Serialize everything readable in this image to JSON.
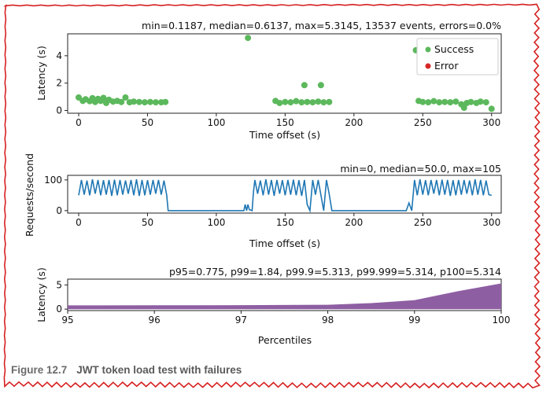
{
  "caption": {
    "number": "Figure 12.7",
    "title": "JWT token load test with failures"
  },
  "colors": {
    "success": "#5cb85c",
    "error": "#d62728",
    "line": "#1f77b4",
    "fill": "#8e5ea2",
    "border": "#d62020"
  },
  "chart_data": [
    {
      "type": "scatter",
      "title": "min=0.1187, median=0.6137, max=5.3145, 13537 events, errors=0.0%",
      "xlabel": "Time offset (s)",
      "ylabel": "Latency (s)",
      "xlim": [
        -8,
        307
      ],
      "ylim": [
        -0.2,
        5.6
      ],
      "xticks": [
        0,
        50,
        100,
        150,
        200,
        250,
        300
      ],
      "yticks": [
        0,
        2,
        4
      ],
      "legend": {
        "position": "top-right",
        "entries": [
          "Success",
          "Error"
        ]
      },
      "series": [
        {
          "name": "Success",
          "color": "#5cb85c",
          "points": [
            [
              0,
              0.95
            ],
            [
              3,
              0.7
            ],
            [
              5,
              0.82
            ],
            [
              8,
              0.68
            ],
            [
              10,
              0.9
            ],
            [
              12,
              0.62
            ],
            [
              14,
              0.85
            ],
            [
              16,
              0.7
            ],
            [
              18,
              0.92
            ],
            [
              20,
              0.55
            ],
            [
              22,
              0.78
            ],
            [
              25,
              0.65
            ],
            [
              28,
              0.7
            ],
            [
              31,
              0.62
            ],
            [
              34,
              0.95
            ],
            [
              37,
              0.6
            ],
            [
              40,
              0.65
            ],
            [
              44,
              0.62
            ],
            [
              48,
              0.6
            ],
            [
              52,
              0.62
            ],
            [
              56,
              0.6
            ],
            [
              60,
              0.6
            ],
            [
              63,
              0.62
            ],
            [
              123,
              5.3
            ],
            [
              143,
              0.7
            ],
            [
              146,
              0.55
            ],
            [
              150,
              0.62
            ],
            [
              154,
              0.6
            ],
            [
              158,
              0.68
            ],
            [
              162,
              0.6
            ],
            [
              164,
              1.85
            ],
            [
              166,
              0.62
            ],
            [
              170,
              0.6
            ],
            [
              174,
              0.65
            ],
            [
              176,
              1.85
            ],
            [
              178,
              0.6
            ],
            [
              182,
              0.62
            ],
            [
              245,
              4.4
            ],
            [
              247,
              0.7
            ],
            [
              250,
              0.62
            ],
            [
              254,
              0.6
            ],
            [
              258,
              0.68
            ],
            [
              262,
              0.6
            ],
            [
              266,
              0.62
            ],
            [
              270,
              0.6
            ],
            [
              274,
              0.65
            ],
            [
              278,
              0.45
            ],
            [
              280,
              0.2
            ],
            [
              282,
              0.55
            ],
            [
              285,
              0.62
            ],
            [
              289,
              0.55
            ],
            [
              292,
              0.65
            ],
            [
              296,
              0.6
            ],
            [
              300,
              0.12
            ]
          ]
        },
        {
          "name": "Error",
          "color": "#d62728",
          "points": []
        }
      ]
    },
    {
      "type": "line",
      "title": "min=0, median=50.0, max=105",
      "xlabel": "Time offset (s)",
      "ylabel": "Requests/second",
      "xlim": [
        -8,
        307
      ],
      "ylim": [
        -8,
        115
      ],
      "xticks": [
        0,
        50,
        100,
        150,
        200,
        250,
        300
      ],
      "yticks": [
        0,
        100
      ],
      "series": [
        {
          "color": "#1f77b4",
          "x": [
            0,
            2,
            4,
            6,
            8,
            10,
            12,
            14,
            16,
            18,
            20,
            22,
            24,
            26,
            28,
            30,
            32,
            34,
            36,
            38,
            40,
            42,
            44,
            46,
            48,
            50,
            52,
            54,
            56,
            58,
            60,
            62,
            64,
            65,
            120,
            121,
            122,
            123,
            124,
            125,
            126,
            127,
            128,
            130,
            132,
            134,
            136,
            138,
            140,
            142,
            144,
            146,
            148,
            150,
            152,
            154,
            156,
            158,
            160,
            162,
            164,
            166,
            168,
            170,
            172,
            174,
            176,
            178,
            180,
            182,
            184,
            234,
            238,
            240,
            242,
            244,
            246,
            248,
            250,
            252,
            254,
            256,
            258,
            260,
            262,
            264,
            266,
            268,
            270,
            272,
            274,
            276,
            278,
            280,
            282,
            284,
            286,
            288,
            290,
            292,
            294,
            296,
            298,
            300
          ],
          "y": [
            50,
            100,
            52,
            98,
            50,
            102,
            55,
            100,
            50,
            99,
            52,
            100,
            48,
            101,
            50,
            100,
            52,
            98,
            55,
            100,
            50,
            102,
            48,
            100,
            50,
            99,
            52,
            100,
            55,
            100,
            52,
            98,
            50,
            0,
            0,
            20,
            0,
            20,
            3,
            2,
            0,
            60,
            100,
            55,
            98,
            50,
            102,
            52,
            100,
            48,
            100,
            55,
            99,
            50,
            100,
            52,
            101,
            50,
            99,
            48,
            100,
            20,
            0,
            100,
            52,
            100,
            50,
            0,
            100,
            55,
            0,
            0,
            0,
            25,
            0,
            100,
            50,
            102,
            52,
            99,
            50,
            100,
            55,
            100,
            50,
            101,
            52,
            100,
            48,
            99,
            50,
            100,
            52,
            100,
            55,
            98,
            50,
            102,
            52,
            100,
            50,
            98,
            52,
            50
          ]
        }
      ]
    },
    {
      "type": "area",
      "title": "p95=0.775, p99=1.84, p99.9=5.313, p99.999=5.314, p100=5.314",
      "xlabel": "Percentiles",
      "ylabel": "Latency (s)",
      "xlim": [
        95,
        100
      ],
      "ylim": [
        -0.3,
        6.2
      ],
      "xticks": [
        95,
        96,
        97,
        98,
        99,
        100
      ],
      "yticks": [
        0,
        5
      ],
      "series": [
        {
          "color": "#8e5ea2",
          "x": [
            95,
            96,
            97,
            98,
            98.5,
            99,
            99.5,
            100
          ],
          "y": [
            0.775,
            0.79,
            0.82,
            0.9,
            1.25,
            1.84,
            3.7,
            5.314
          ]
        }
      ]
    }
  ]
}
